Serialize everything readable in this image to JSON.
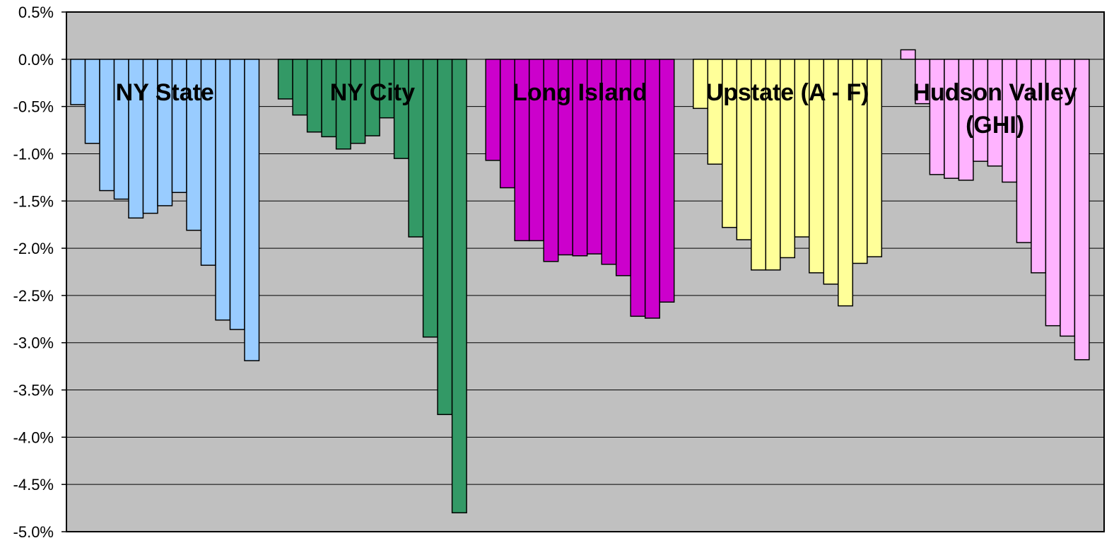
{
  "chart_data": {
    "type": "bar",
    "ylim": [
      -5.0,
      0.5
    ],
    "ytick_step": 0.5,
    "y_tick_labels": [
      "0.5%",
      "0.0%",
      "-0.5%",
      "-1.0%",
      "-1.5%",
      "-2.0%",
      "-2.5%",
      "-3.0%",
      "-3.5%",
      "-4.0%",
      "-4.5%",
      "-5.0%"
    ],
    "grid": true,
    "plot_background": "#c0c0c0",
    "groups": [
      {
        "label_lines": [
          "NY State"
        ],
        "color": "#99ccff",
        "values": [
          -0.48,
          -0.89,
          -1.39,
          -1.48,
          -1.68,
          -1.63,
          -1.55,
          -1.41,
          -1.81,
          -2.18,
          -2.76,
          -2.86,
          -3.19
        ]
      },
      {
        "label_lines": [
          "NY City"
        ],
        "color": "#339966",
        "values": [
          -0.42,
          -0.59,
          -0.77,
          -0.82,
          -0.95,
          -0.89,
          -0.81,
          -0.62,
          -1.05,
          -1.88,
          -2.94,
          -3.76,
          -4.8
        ]
      },
      {
        "label_lines": [
          "Long Island"
        ],
        "color": "#cc00cc",
        "values": [
          -1.07,
          -1.36,
          -1.92,
          -1.92,
          -2.14,
          -2.07,
          -2.08,
          -2.06,
          -2.17,
          -2.29,
          -2.72,
          -2.74,
          -2.57
        ]
      },
      {
        "label_lines": [
          "Upstate (A - F)"
        ],
        "color": "#ffff99",
        "values": [
          -0.52,
          -1.11,
          -1.78,
          -1.91,
          -2.23,
          -2.23,
          -2.1,
          -1.88,
          -2.26,
          -2.38,
          -2.61,
          -2.16,
          -2.09
        ]
      },
      {
        "label_lines": [
          "Hudson Valley",
          "(GHI)"
        ],
        "color": "#ffb3ff",
        "values": [
          0.1,
          -0.47,
          -1.22,
          -1.26,
          -1.28,
          -1.08,
          -1.13,
          -1.3,
          -1.94,
          -2.26,
          -2.82,
          -2.93,
          -3.18
        ]
      }
    ]
  }
}
